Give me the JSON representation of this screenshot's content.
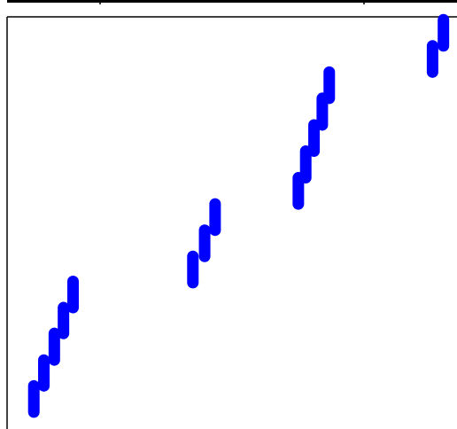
{
  "chart_data": {
    "type": "line",
    "title": "",
    "xlabel": "",
    "ylabel": "",
    "xlim": [
      0,
      100
    ],
    "ylim": [
      0,
      100
    ],
    "grid": false,
    "legend": "none",
    "color": "#0000ff",
    "segments": [
      {
        "x": [
          3.7,
          3.7
        ],
        "y": [
          2.0,
          8.5
        ]
      },
      {
        "x": [
          6.0,
          6.0
        ],
        "y": [
          8.5,
          14.9
        ]
      },
      {
        "x": [
          8.4,
          8.4
        ],
        "y": [
          14.9,
          21.5
        ]
      },
      {
        "x": [
          10.5,
          10.5
        ],
        "y": [
          21.5,
          27.9
        ]
      },
      {
        "x": [
          12.7,
          12.7
        ],
        "y": [
          27.9,
          34.4
        ]
      },
      {
        "x": [
          40.2,
          40.2
        ],
        "y": [
          34.1,
          40.6
        ]
      },
      {
        "x": [
          42.9,
          42.9
        ],
        "y": [
          40.6,
          47.1
        ]
      },
      {
        "x": [
          45.3,
          45.3
        ],
        "y": [
          47.1,
          53.6
        ]
      },
      {
        "x": [
          64.4,
          64.4
        ],
        "y": [
          53.6,
          60.1
        ]
      },
      {
        "x": [
          66.1,
          66.1
        ],
        "y": [
          60.1,
          66.7
        ]
      },
      {
        "x": [
          68.0,
          68.0
        ],
        "y": [
          66.7,
          73.2
        ]
      },
      {
        "x": [
          69.9,
          69.9
        ],
        "y": [
          73.2,
          79.8
        ]
      },
      {
        "x": [
          71.5,
          71.5
        ],
        "y": [
          79.8,
          86.3
        ]
      },
      {
        "x": [
          95.2,
          95.2
        ],
        "y": [
          86.3,
          92.8
        ]
      },
      {
        "x": [
          97.7,
          97.7
        ],
        "y": [
          92.8,
          99.3
        ]
      }
    ]
  }
}
